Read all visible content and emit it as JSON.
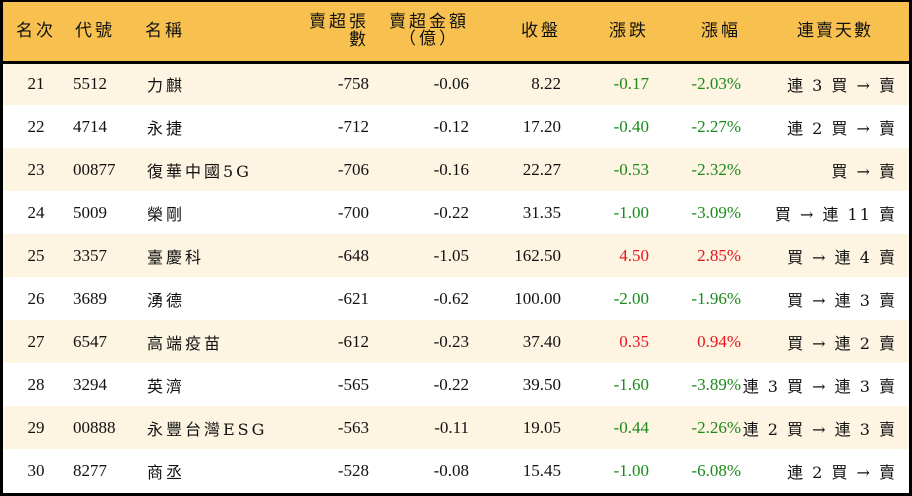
{
  "colors": {
    "header_bg": "#F8C14F",
    "row_odd_bg": "#FDF4E2",
    "row_even_bg": "#FFFFFF",
    "down_color": "#1A8A1A",
    "up_color": "#E8141E"
  },
  "table": {
    "headers": {
      "rank": "名次",
      "code": "代號",
      "name": "名稱",
      "net_sell_volume": "賣超張數",
      "net_sell_amount_line1": "賣超金額",
      "net_sell_amount_line2": "（億）",
      "close": "收盤",
      "change": "漲跌",
      "change_pct": "漲幅",
      "streak": "連賣天數"
    },
    "rows": [
      {
        "rank": "21",
        "code": "5512",
        "name": "力麒",
        "volume": "-758",
        "amount": "-0.06",
        "close": "8.22",
        "change": "-0.17",
        "pct": "-2.03%",
        "dir": "down",
        "streak": "連 3 買 → 賣"
      },
      {
        "rank": "22",
        "code": "4714",
        "name": "永捷",
        "volume": "-712",
        "amount": "-0.12",
        "close": "17.20",
        "change": "-0.40",
        "pct": "-2.27%",
        "dir": "down",
        "streak": "連 2 買 → 賣"
      },
      {
        "rank": "23",
        "code": "00877",
        "name": "復華中國5G",
        "volume": "-706",
        "amount": "-0.16",
        "close": "22.27",
        "change": "-0.53",
        "pct": "-2.32%",
        "dir": "down",
        "streak": "買 → 賣"
      },
      {
        "rank": "24",
        "code": "5009",
        "name": "榮剛",
        "volume": "-700",
        "amount": "-0.22",
        "close": "31.35",
        "change": "-1.00",
        "pct": "-3.09%",
        "dir": "down",
        "streak": "買 → 連 11 賣"
      },
      {
        "rank": "25",
        "code": "3357",
        "name": "臺慶科",
        "volume": "-648",
        "amount": "-1.05",
        "close": "162.50",
        "change": "4.50",
        "pct": "2.85%",
        "dir": "up",
        "streak": "買 → 連 4 賣"
      },
      {
        "rank": "26",
        "code": "3689",
        "name": "湧德",
        "volume": "-621",
        "amount": "-0.62",
        "close": "100.00",
        "change": "-2.00",
        "pct": "-1.96%",
        "dir": "down",
        "streak": "買 → 連 3 賣"
      },
      {
        "rank": "27",
        "code": "6547",
        "name": "高端疫苗",
        "volume": "-612",
        "amount": "-0.23",
        "close": "37.40",
        "change": "0.35",
        "pct": "0.94%",
        "dir": "up",
        "streak": "買 → 連 2 賣"
      },
      {
        "rank": "28",
        "code": "3294",
        "name": "英濟",
        "volume": "-565",
        "amount": "-0.22",
        "close": "39.50",
        "change": "-1.60",
        "pct": "-3.89%",
        "dir": "down",
        "streak": "連 3 買 → 連 3 賣"
      },
      {
        "rank": "29",
        "code": "00888",
        "name": "永豐台灣ESG",
        "volume": "-563",
        "amount": "-0.11",
        "close": "19.05",
        "change": "-0.44",
        "pct": "-2.26%",
        "dir": "down",
        "streak": "連 2 買 → 連 3 賣"
      },
      {
        "rank": "30",
        "code": "8277",
        "name": "商丞",
        "volume": "-528",
        "amount": "-0.08",
        "close": "15.45",
        "change": "-1.00",
        "pct": "-6.08%",
        "dir": "down",
        "streak": "連 2 買 → 賣"
      }
    ]
  }
}
